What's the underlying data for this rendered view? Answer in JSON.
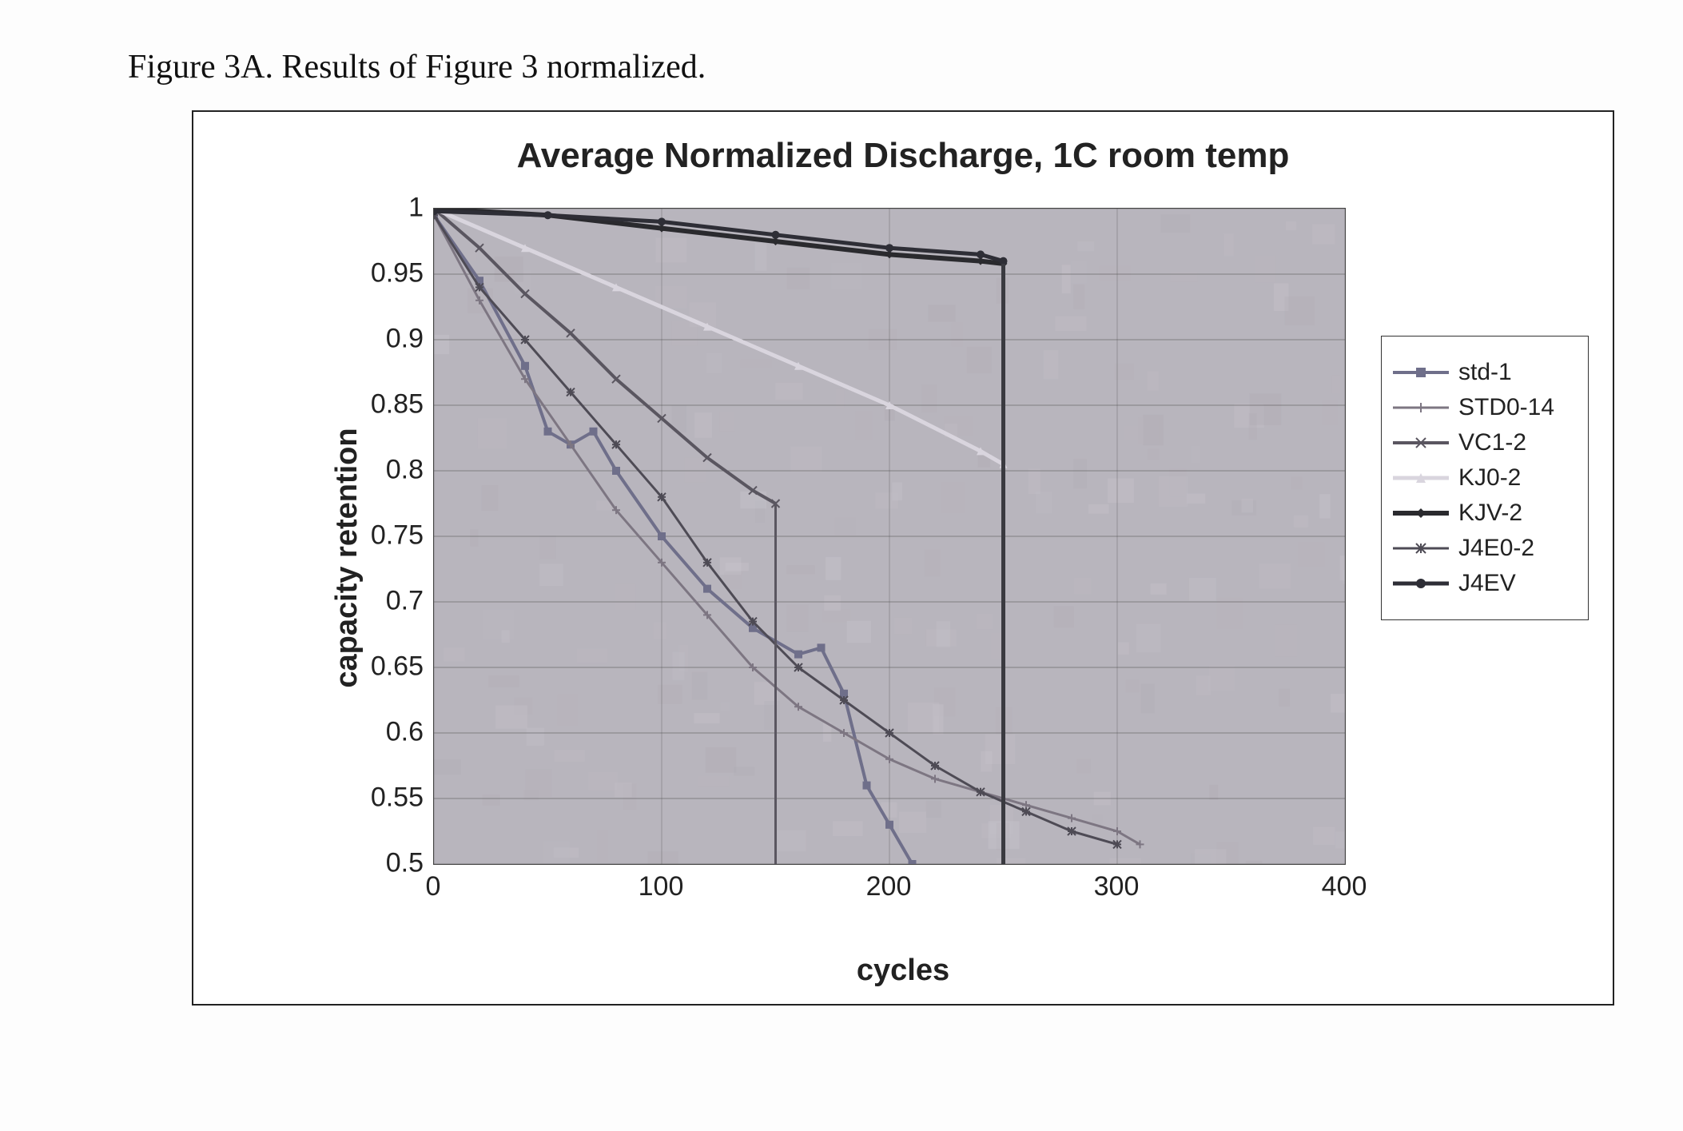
{
  "caption_prefix": "Figure 3A.",
  "caption_rest": "Results of Figure 3 normalized.",
  "chart": {
    "type": "line",
    "title": "Average Normalized Discharge, 1C room temp",
    "title_fontsize": 44,
    "xlabel": "cycles",
    "ylabel": "capacity retention",
    "label_fontsize": 38,
    "tick_fontsize": 34,
    "xlim": [
      0,
      400
    ],
    "ylim": [
      0.5,
      1
    ],
    "xticks": [
      0,
      100,
      200,
      300,
      400
    ],
    "yticks": [
      0.5,
      0.55,
      0.6,
      0.65,
      0.7,
      0.75,
      0.8,
      0.85,
      0.9,
      0.95,
      1
    ],
    "plot_bg_color": "#b8b5bd",
    "grid_color": "#5a5a5a",
    "grid_width": 1,
    "outer_border_color": "#222222",
    "background_color": "#ffffff",
    "series": [
      {
        "name": "std-1",
        "color": "#6f6f8a",
        "marker": "square",
        "linewidth": 4,
        "x": [
          0,
          20,
          40,
          50,
          60,
          70,
          80,
          100,
          120,
          140,
          160,
          170,
          180,
          190,
          200,
          210
        ],
        "y": [
          0.995,
          0.945,
          0.88,
          0.83,
          0.82,
          0.83,
          0.8,
          0.75,
          0.71,
          0.68,
          0.66,
          0.665,
          0.63,
          0.56,
          0.53,
          0.5
        ]
      },
      {
        "name": "STD0-14",
        "color": "#7d7682",
        "marker": "plus",
        "linewidth": 3,
        "x": [
          0,
          20,
          40,
          60,
          80,
          100,
          120,
          140,
          160,
          180,
          200,
          220,
          240,
          260,
          280,
          300,
          310
        ],
        "y": [
          0.995,
          0.93,
          0.87,
          0.82,
          0.77,
          0.73,
          0.69,
          0.65,
          0.62,
          0.6,
          0.58,
          0.565,
          0.555,
          0.545,
          0.535,
          0.525,
          0.515
        ]
      },
      {
        "name": "VC1-2",
        "color": "#5a5660",
        "marker": "x",
        "linewidth": 4,
        "x": [
          0,
          20,
          40,
          60,
          80,
          100,
          120,
          140,
          150
        ],
        "y": [
          1.0,
          0.97,
          0.935,
          0.905,
          0.87,
          0.84,
          0.81,
          0.785,
          0.775
        ]
      },
      {
        "name": "KJ0-2",
        "color": "#d9d5de",
        "marker": "triangle",
        "linewidth": 5,
        "x": [
          0,
          40,
          80,
          120,
          160,
          200,
          240,
          250
        ],
        "y": [
          1.0,
          0.97,
          0.94,
          0.91,
          0.88,
          0.85,
          0.815,
          0.805
        ]
      },
      {
        "name": "KJV-2",
        "color": "#2a2a2e",
        "marker": "diamond",
        "linewidth": 6,
        "x": [
          0,
          50,
          100,
          150,
          200,
          240,
          250
        ],
        "y": [
          1.0,
          0.995,
          0.985,
          0.975,
          0.965,
          0.96,
          0.958
        ]
      },
      {
        "name": "J4E0-2",
        "color": "#4e4b55",
        "marker": "asterisk",
        "linewidth": 3,
        "x": [
          0,
          20,
          40,
          60,
          80,
          100,
          120,
          140,
          160,
          180,
          200,
          220,
          240,
          260,
          280,
          300
        ],
        "y": [
          0.995,
          0.94,
          0.9,
          0.86,
          0.82,
          0.78,
          0.73,
          0.685,
          0.65,
          0.625,
          0.6,
          0.575,
          0.555,
          0.54,
          0.525,
          0.515
        ]
      },
      {
        "name": "J4EV",
        "color": "#2e2e36",
        "marker": "circle",
        "linewidth": 5,
        "x": [
          0,
          50,
          100,
          150,
          200,
          240,
          250
        ],
        "y": [
          0.998,
          0.995,
          0.99,
          0.98,
          0.97,
          0.965,
          0.96
        ]
      }
    ],
    "vertical_reference_lines": [
      {
        "x": 150,
        "ymin": 0.5,
        "ymax": 0.775,
        "color": "#5a5660",
        "width": 3
      },
      {
        "x": 250,
        "ymin": 0.5,
        "ymax": 0.958,
        "color": "#3a3a40",
        "width": 5
      }
    ],
    "legend": {
      "position": "right",
      "border_color": "#333333",
      "background_color": "#ffffff",
      "fontsize": 30
    }
  }
}
